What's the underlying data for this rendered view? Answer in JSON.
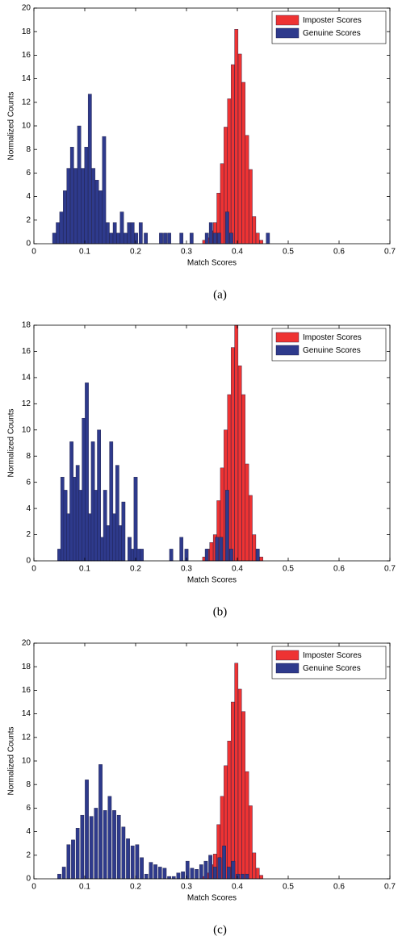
{
  "chart_data": [
    {
      "type": "bar",
      "caption": "(a)",
      "xlabel": "Match Scores",
      "ylabel": "Normalized Counts",
      "legend": "upper right",
      "xlim": [
        0,
        0.7
      ],
      "xticks": [
        0,
        0.1,
        0.2,
        0.3,
        0.4,
        0.5,
        0.6,
        0.7
      ],
      "ylim": [
        0,
        20
      ],
      "yticks": [
        0,
        2,
        4,
        6,
        8,
        10,
        12,
        14,
        16,
        18,
        20
      ],
      "series": [
        {
          "name": "Imposter Scores",
          "color": "#ee3333",
          "x": [
            0.335,
            0.342,
            0.349,
            0.356,
            0.363,
            0.37,
            0.377,
            0.384,
            0.391,
            0.398,
            0.405,
            0.412,
            0.419,
            0.426,
            0.433,
            0.44,
            0.447
          ],
          "values": [
            0.3,
            0.5,
            1.1,
            1.8,
            4.3,
            6.8,
            9.9,
            12.3,
            15.2,
            18.2,
            16.1,
            13.7,
            9.2,
            6.3,
            2.3,
            0.9,
            0.3
          ]
        },
        {
          "name": "Genuine Scores",
          "color": "#2e3a8c",
          "x": [
            0.04,
            0.047,
            0.054,
            0.061,
            0.068,
            0.075,
            0.082,
            0.089,
            0.096,
            0.103,
            0.11,
            0.117,
            0.124,
            0.131,
            0.138,
            0.145,
            0.152,
            0.159,
            0.166,
            0.173,
            0.18,
            0.187,
            0.194,
            0.201,
            0.21,
            0.22,
            0.25,
            0.258,
            0.266,
            0.29,
            0.31,
            0.34,
            0.348,
            0.356,
            0.364,
            0.38,
            0.388,
            0.46
          ],
          "values": [
            0.9,
            1.8,
            2.7,
            4.5,
            6.4,
            8.2,
            6.4,
            10,
            6.4,
            8.2,
            12.7,
            6.4,
            5.4,
            4.5,
            9.1,
            1.8,
            0.9,
            1.8,
            0.9,
            2.7,
            0.9,
            1.8,
            1.8,
            0.9,
            1.8,
            0.9,
            0.9,
            0.9,
            0.9,
            0.9,
            0.9,
            0.9,
            1.8,
            0.9,
            0.9,
            2.7,
            0.9,
            0.9
          ]
        }
      ]
    },
    {
      "type": "bar",
      "caption": "(b)",
      "xlabel": "Match Scores",
      "ylabel": "Normalized Counts",
      "legend": "upper right",
      "xlim": [
        0,
        0.7
      ],
      "xticks": [
        0,
        0.1,
        0.2,
        0.3,
        0.4,
        0.5,
        0.6,
        0.7
      ],
      "ylim": [
        0,
        18
      ],
      "yticks": [
        0,
        2,
        4,
        6,
        8,
        10,
        12,
        14,
        16,
        18
      ],
      "series": [
        {
          "name": "Imposter Scores",
          "color": "#ee3333",
          "x": [
            0.335,
            0.342,
            0.349,
            0.356,
            0.363,
            0.37,
            0.377,
            0.384,
            0.391,
            0.398,
            0.405,
            0.412,
            0.419,
            0.426,
            0.433,
            0.44,
            0.447
          ],
          "values": [
            0.3,
            0.9,
            1.4,
            2.0,
            4.6,
            7.1,
            10,
            12.7,
            16.3,
            18,
            14.9,
            12.7,
            7.4,
            5.0,
            2.0,
            0.9,
            0.3
          ]
        },
        {
          "name": "Genuine Scores",
          "color": "#2e3a8c",
          "x": [
            0.05,
            0.056,
            0.062,
            0.068,
            0.074,
            0.08,
            0.086,
            0.092,
            0.098,
            0.104,
            0.11,
            0.116,
            0.122,
            0.128,
            0.134,
            0.14,
            0.146,
            0.152,
            0.158,
            0.164,
            0.17,
            0.176,
            0.188,
            0.194,
            0.2,
            0.206,
            0.212,
            0.27,
            0.29,
            0.3,
            0.34,
            0.36,
            0.368,
            0.38,
            0.388,
            0.44
          ],
          "values": [
            0.9,
            6.4,
            5.4,
            3.6,
            9.1,
            6.4,
            7.3,
            5.4,
            10.9,
            13.6,
            3.6,
            9.1,
            5.4,
            10,
            1.8,
            5.4,
            2.7,
            9.1,
            3.6,
            7.3,
            2.7,
            4.5,
            1.8,
            0.9,
            6.4,
            0.9,
            0.9,
            0.9,
            1.8,
            0.9,
            0.9,
            1.8,
            1.8,
            5.4,
            0.9,
            0.9
          ]
        }
      ]
    },
    {
      "type": "bar",
      "caption": "(c)",
      "xlabel": "Match Scores",
      "ylabel": "Normalized Counts",
      "legend": "upper right",
      "xlim": [
        0,
        0.7
      ],
      "xticks": [
        0,
        0.1,
        0.2,
        0.3,
        0.4,
        0.5,
        0.6,
        0.7
      ],
      "ylim": [
        0,
        20
      ],
      "yticks": [
        0,
        2,
        4,
        6,
        8,
        10,
        12,
        14,
        16,
        18,
        20
      ],
      "series": [
        {
          "name": "Imposter Scores",
          "color": "#ee3333",
          "x": [
            0.335,
            0.342,
            0.349,
            0.356,
            0.363,
            0.37,
            0.377,
            0.384,
            0.391,
            0.398,
            0.405,
            0.412,
            0.419,
            0.426,
            0.433,
            0.44,
            0.447
          ],
          "values": [
            0.2,
            0.5,
            1.2,
            2.1,
            4.6,
            7.0,
            9.6,
            11.7,
            15.0,
            18.3,
            16.1,
            14.2,
            9.1,
            6.2,
            2.2,
            0.9,
            0.3
          ]
        },
        {
          "name": "Genuine Scores",
          "color": "#2e3a8c",
          "x": [
            0.05,
            0.059,
            0.068,
            0.077,
            0.086,
            0.095,
            0.104,
            0.113,
            0.122,
            0.131,
            0.14,
            0.149,
            0.158,
            0.167,
            0.176,
            0.185,
            0.194,
            0.203,
            0.212,
            0.221,
            0.23,
            0.239,
            0.248,
            0.257,
            0.266,
            0.275,
            0.284,
            0.293,
            0.302,
            0.311,
            0.32,
            0.329,
            0.338,
            0.347,
            0.356,
            0.365,
            0.374,
            0.383,
            0.392,
            0.401,
            0.41,
            0.419
          ],
          "values": [
            0.4,
            1.0,
            2.9,
            3.3,
            4.3,
            5.4,
            8.4,
            5.3,
            6.0,
            9.7,
            5.8,
            7.0,
            5.8,
            5.4,
            4.4,
            3.4,
            2.8,
            2.9,
            1.8,
            0.4,
            1.4,
            1.2,
            1.0,
            0.9,
            0.2,
            0.2,
            0.5,
            0.6,
            1.5,
            0.9,
            0.8,
            1.2,
            1.5,
            2.0,
            1.0,
            1.8,
            2.8,
            1.0,
            1.5,
            0.4,
            0.4,
            0.4
          ]
        }
      ]
    }
  ]
}
